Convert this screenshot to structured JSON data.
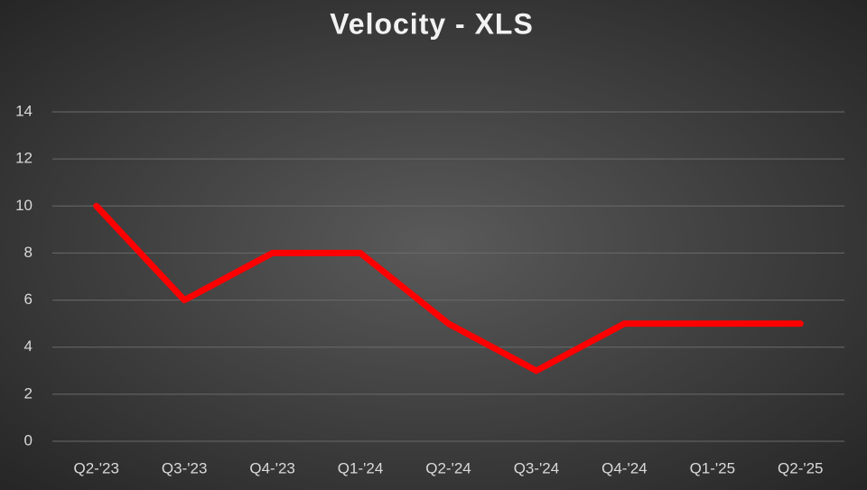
{
  "chart_data": {
    "type": "line",
    "title": "Velocity - XLS",
    "categories": [
      "Q2-'23",
      "Q3-'23",
      "Q4-'23",
      "Q1-'24",
      "Q2-'24",
      "Q3-'24",
      "Q4-'24",
      "Q1-'25",
      "Q2-'25"
    ],
    "values": [
      10,
      6,
      8,
      8,
      5,
      3,
      5,
      5,
      5
    ],
    "color": "#ff0000",
    "ylim": [
      0,
      14
    ],
    "yticks": [
      0,
      2,
      4,
      6,
      8,
      10,
      12,
      14
    ],
    "grid": true
  }
}
